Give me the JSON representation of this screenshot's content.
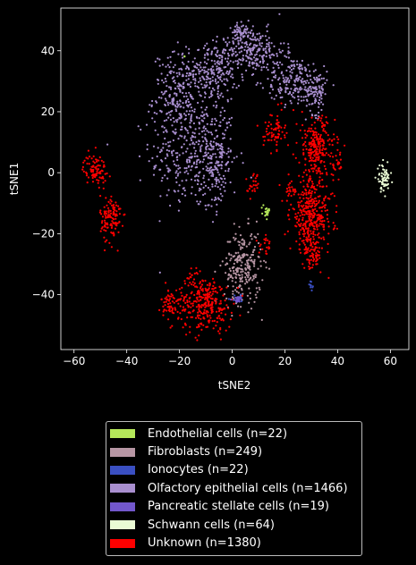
{
  "chart_data": {
    "type": "scatter",
    "xlabel": "tSNE2",
    "ylabel": "tSNE1",
    "xlim": [
      -65,
      67
    ],
    "ylim": [
      -58,
      54
    ],
    "xticks": [
      -60,
      -40,
      -20,
      0,
      20,
      40,
      60
    ],
    "yticks": [
      -40,
      -20,
      0,
      20,
      40
    ],
    "legend_position": "below",
    "series": [
      {
        "name": "Endothelial cells (n=22)",
        "color": "#b5e85a",
        "clusters": [
          {
            "cx": 13,
            "cy": -12.5,
            "sx": 0.6,
            "sy": 0.8,
            "n": 20
          },
          {
            "cx": -18,
            "cy": 38,
            "sx": 0.2,
            "sy": 0.2,
            "n": 2
          }
        ]
      },
      {
        "name": "Fibroblasts (n=249)",
        "color": "#b796a4",
        "clusters": [
          {
            "cx": 4,
            "cy": -31,
            "sx": 3.5,
            "sy": 6,
            "n": 249
          }
        ]
      },
      {
        "name": "Ionocytes (n=22)",
        "color": "#3a4fc2",
        "clusters": [
          {
            "cx": 30,
            "cy": -37,
            "sx": 0.5,
            "sy": 0.8,
            "n": 10
          },
          {
            "cx": 2,
            "cy": -41.5,
            "sx": 1.3,
            "sy": 0.6,
            "n": 12
          }
        ]
      },
      {
        "name": "Olfactory epithelial cells (n=1466)",
        "color": "#a98fcf",
        "clusters": [
          {
            "cx": -15,
            "cy": 5,
            "sx": 8,
            "sy": 9,
            "n": 300
          },
          {
            "cx": -20,
            "cy": 25,
            "sx": 5,
            "sy": 7,
            "n": 260
          },
          {
            "cx": -7,
            "cy": 33,
            "sx": 5,
            "sy": 5,
            "n": 200
          },
          {
            "cx": 8,
            "cy": 40,
            "sx": 6,
            "sy": 3.5,
            "n": 220
          },
          {
            "cx": 23,
            "cy": 30,
            "sx": 5,
            "sy": 4,
            "n": 180
          },
          {
            "cx": 32,
            "cy": 27,
            "sx": 2,
            "sy": 4,
            "n": 100
          },
          {
            "cx": 4,
            "cy": 46,
            "sx": 2,
            "sy": 1.5,
            "n": 60
          },
          {
            "cx": -6,
            "cy": 5,
            "sx": 3,
            "sy": 9,
            "n": 146
          }
        ]
      },
      {
        "name": "Pancreatic stellate cells (n=19)",
        "color": "#7257cc",
        "clusters": [
          {
            "cx": 2,
            "cy": -41.5,
            "sx": 1.1,
            "sy": 0.5,
            "n": 19
          }
        ]
      },
      {
        "name": "Schwann cells (n=64)",
        "color": "#eafad4",
        "clusters": [
          {
            "cx": 57.5,
            "cy": -2,
            "sx": 1.2,
            "sy": 2.2,
            "n": 64
          }
        ]
      },
      {
        "name": "Unknown (n=1380)",
        "color": "#ff0000",
        "clusters": [
          {
            "cx": -52,
            "cy": 1,
            "sx": 2.2,
            "sy": 2.5,
            "n": 90
          },
          {
            "cx": -46,
            "cy": -15,
            "sx": 2,
            "sy": 4,
            "n": 120
          },
          {
            "cx": -23,
            "cy": -43,
            "sx": 2,
            "sy": 2.5,
            "n": 70
          },
          {
            "cx": -10,
            "cy": -43,
            "sx": 5,
            "sy": 4.5,
            "n": 280
          },
          {
            "cx": 16,
            "cy": 14,
            "sx": 2,
            "sy": 3,
            "n": 70
          },
          {
            "cx": 32,
            "cy": 8,
            "sx": 3.5,
            "sy": 5,
            "n": 230
          },
          {
            "cx": 30,
            "cy": -14,
            "sx": 4,
            "sy": 6,
            "n": 360
          },
          {
            "cx": 30,
            "cy": -27,
            "sx": 2,
            "sy": 2.5,
            "n": 60
          },
          {
            "cx": 8,
            "cy": -4,
            "sx": 1,
            "sy": 2,
            "n": 25
          },
          {
            "cx": 22,
            "cy": -6,
            "sx": 1.2,
            "sy": 1.5,
            "n": 20
          },
          {
            "cx": 40,
            "cy": 3,
            "sx": 1,
            "sy": 2,
            "n": 20
          },
          {
            "cx": -15,
            "cy": -35,
            "sx": 1.5,
            "sy": 2,
            "n": 15
          },
          {
            "cx": 13,
            "cy": -24,
            "sx": 1.5,
            "sy": 1.5,
            "n": 20
          }
        ]
      }
    ]
  }
}
